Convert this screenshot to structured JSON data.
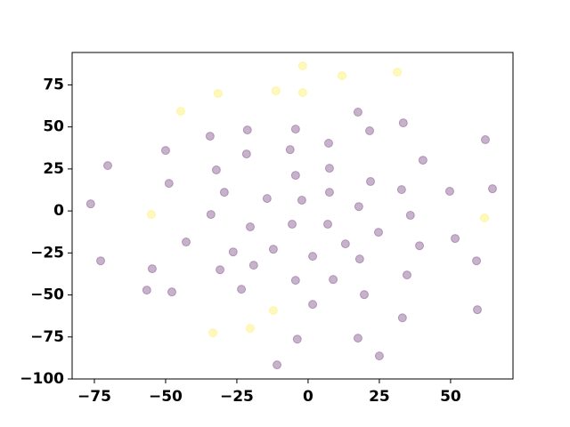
{
  "chart_data": {
    "type": "scatter",
    "xlim": [
      -82.8,
      71.9
    ],
    "ylim": [
      -100,
      94.3
    ],
    "xticks": [
      {
        "value": -75,
        "label": "−75"
      },
      {
        "value": -50,
        "label": "−50"
      },
      {
        "value": -25,
        "label": "−25"
      },
      0,
      25,
      50
    ],
    "yticks": [
      {
        "value": -100,
        "label": "−100"
      },
      {
        "value": -75,
        "label": "−75"
      },
      {
        "value": -50,
        "label": "−50"
      },
      {
        "value": -25,
        "label": "−25"
      },
      0,
      25,
      50,
      75
    ],
    "grid": false,
    "series": [
      {
        "color": "#440154",
        "x": [
          17.5,
          33.4,
          -4.4,
          -21.3,
          21.6,
          -34.4,
          62.2,
          7.2,
          -50,
          -6.3,
          -21.6,
          40.3,
          -70.3,
          -32.2,
          7.5,
          -4.4,
          -48.8,
          21.9,
          32.8,
          49.7,
          64.7,
          -29.4,
          7.5,
          -14.4,
          -2.2,
          -76.3,
          17.8,
          -34.1,
          35.9,
          -20.3,
          -5.6,
          6.9,
          24.7,
          51.6,
          -42.8,
          13.1,
          39.1,
          -12.2,
          -26.3,
          1.6,
          -72.8,
          18.1,
          59.1,
          -19.1,
          -54.7,
          -30.9,
          34.7,
          -4.4,
          8.8,
          -56.6,
          -47.8,
          -23.4,
          19.7,
          1.6,
          59.4,
          33.1,
          -3.8,
          17.5,
          25,
          -10.9
        ],
        "values": [
          58.8,
          52.4,
          48.7,
          48.2,
          47.7,
          44.5,
          42.4,
          40.3,
          36,
          36.5,
          33.9,
          30.2,
          27,
          24.4,
          25.4,
          21.2,
          16.4,
          17.5,
          12.7,
          11.7,
          13.2,
          11.1,
          11.1,
          7.4,
          6.4,
          4.2,
          2.6,
          -2.1,
          -2.6,
          -9.5,
          -7.9,
          -7.9,
          -12.7,
          -16.4,
          -18.5,
          -19.6,
          -20.7,
          -22.8,
          -24.4,
          -27,
          -29.7,
          -28.6,
          -29.7,
          -32.3,
          -34.4,
          -35,
          -38.1,
          -41.3,
          -40.8,
          -47.1,
          -48.2,
          -46.6,
          -49.8,
          -55.6,
          -58.8,
          -63.6,
          -76.3,
          -75.7,
          -86.3,
          -91.6
        ]
      },
      {
        "color": "#fde725",
        "x": [
          -1.9,
          11.9,
          31.3,
          -31.6,
          -11.3,
          -1.9,
          -44.7,
          -55,
          61.9,
          -12.2,
          -33.4,
          -20.3
        ],
        "values": [
          86.3,
          80.5,
          82.6,
          69.9,
          71.5,
          70.4,
          59.3,
          -2.1,
          -4.2,
          -59.3,
          -72.6,
          -69.9
        ]
      }
    ]
  }
}
